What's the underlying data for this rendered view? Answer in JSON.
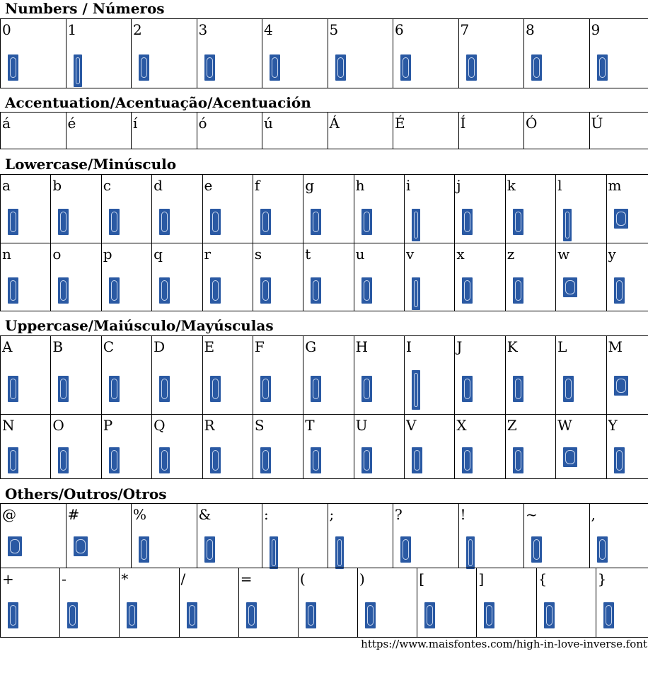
{
  "sections": {
    "numbers": {
      "title": "Numbers / Números",
      "chars": [
        "0",
        "1",
        "2",
        "3",
        "4",
        "5",
        "6",
        "7",
        "8",
        "9"
      ]
    },
    "accents": {
      "title": "Accentuation/Acentuação/Acentuación",
      "chars": [
        "á",
        "é",
        "í",
        "ó",
        "ú",
        "Á",
        "É",
        "Í",
        "Ó",
        "Ú"
      ]
    },
    "lowercase": {
      "title": "Lowercase/Minúsculo",
      "row1": [
        "a",
        "b",
        "c",
        "d",
        "e",
        "f",
        "g",
        "h",
        "i",
        "j",
        "k",
        "l",
        "m"
      ],
      "row2": [
        "n",
        "o",
        "p",
        "q",
        "r",
        "s",
        "t",
        "u",
        "v",
        "x",
        "z",
        "w",
        "y"
      ]
    },
    "uppercase": {
      "title": "Uppercase/Maiúsculo/Mayúsculas",
      "row1": [
        "A",
        "B",
        "C",
        "D",
        "E",
        "F",
        "G",
        "H",
        "I",
        "J",
        "K",
        "L",
        "M"
      ],
      "row2": [
        "N",
        "O",
        "P",
        "Q",
        "R",
        "S",
        "T",
        "U",
        "V",
        "X",
        "Z",
        "W",
        "Y"
      ]
    },
    "others": {
      "title": "Others/Outros/Otros",
      "row1": [
        "@",
        "#",
        "%",
        "&",
        ":",
        ";",
        "?",
        "!",
        "~",
        ","
      ],
      "row2": [
        "+",
        "-",
        "*",
        "/",
        "=",
        "(",
        ")",
        "[",
        "]",
        "{",
        "}"
      ]
    }
  },
  "footer": {
    "url": "https://www.maisfontes.com/high-in-love-inverse.font"
  },
  "colors": {
    "glyph_background": "#2a59a3",
    "glyph_foreground": "#dfe8f6"
  }
}
